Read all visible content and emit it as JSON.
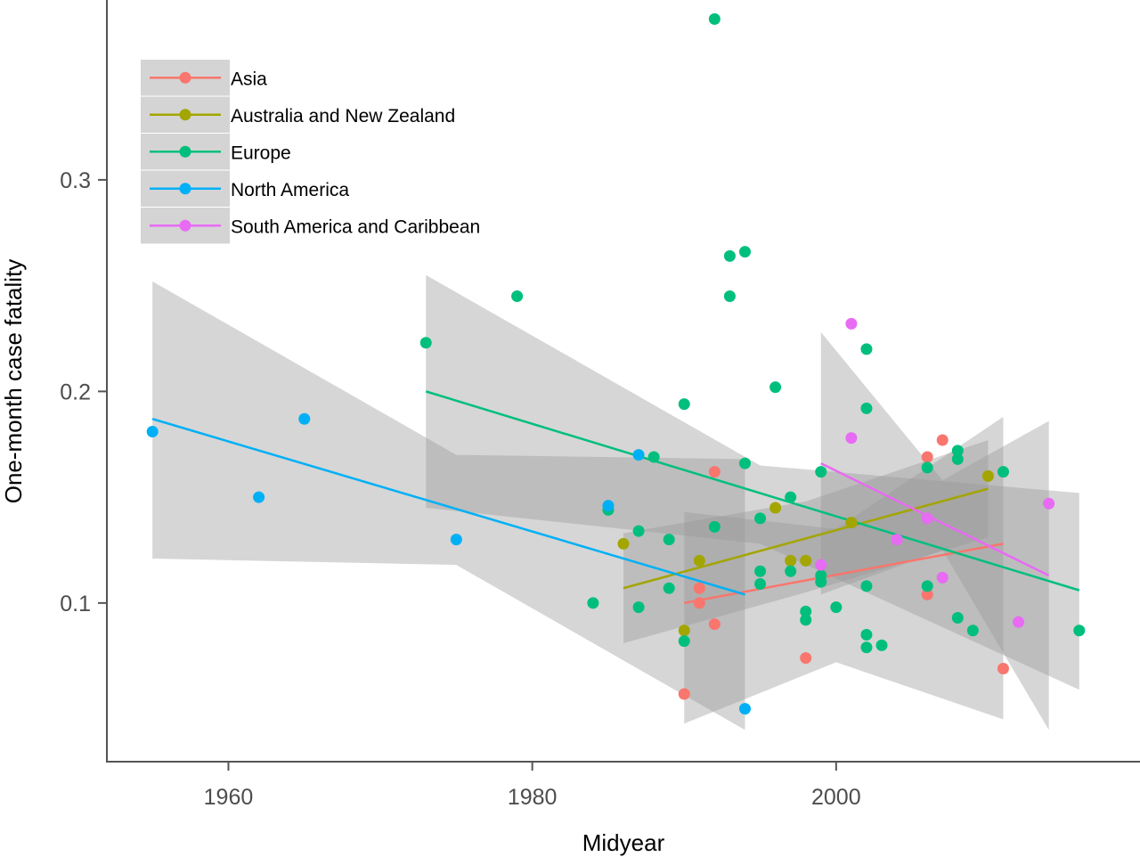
{
  "chart_data": {
    "type": "scatter",
    "title": "",
    "xlabel": "Midyear",
    "ylabel": "One-month case fatality",
    "xlim": [
      1952,
      2020
    ],
    "ylim": [
      0.025,
      0.385
    ],
    "x_ticks": [
      1960,
      1980,
      2000
    ],
    "x_tick_labels": [
      "1960",
      "1980",
      "2000"
    ],
    "y_ticks": [
      0.1,
      0.2,
      0.3
    ],
    "y_tick_labels": [
      "0.1",
      "0.2",
      "0.3"
    ],
    "grid": false,
    "legend_position": "top-left",
    "colors": {
      "Asia": "#F8766D",
      "Australia and New Zealand": "#A3A500",
      "Europe": "#00BF7D",
      "North America": "#00B0F6",
      "South America and Caribbean": "#E76BF3",
      "ribbon": "#999999"
    },
    "series": [
      {
        "name": "Asia",
        "points": [
          [
            1990,
            0.057
          ],
          [
            1991,
            0.1
          ],
          [
            1991,
            0.107
          ],
          [
            1992,
            0.09
          ],
          [
            1992,
            0.162
          ],
          [
            1998,
            0.074
          ],
          [
            2006,
            0.104
          ],
          [
            2006,
            0.169
          ],
          [
            2007,
            0.177
          ],
          [
            2011,
            0.069
          ]
        ],
        "fit": {
          "x": [
            1990,
            2011
          ],
          "y": [
            0.1,
            0.128
          ]
        },
        "ci": {
          "x": [
            1990,
            2000,
            2011
          ],
          "lower": [
            0.043,
            0.072,
            0.045
          ],
          "upper": [
            0.143,
            0.135,
            0.188
          ]
        }
      },
      {
        "name": "Australia and New Zealand",
        "points": [
          [
            1986,
            0.128
          ],
          [
            1990,
            0.087
          ],
          [
            1991,
            0.12
          ],
          [
            1996,
            0.145
          ],
          [
            1997,
            0.12
          ],
          [
            1998,
            0.12
          ],
          [
            2001,
            0.138
          ],
          [
            2010,
            0.16
          ]
        ],
        "fit": {
          "x": [
            1986,
            2010
          ],
          "y": [
            0.107,
            0.154
          ]
        },
        "ci": {
          "x": [
            1986,
            1998,
            2010
          ],
          "lower": [
            0.081,
            0.105,
            0.131
          ],
          "upper": [
            0.133,
            0.148,
            0.177
          ]
        }
      },
      {
        "name": "Europe",
        "points": [
          [
            1973,
            0.223
          ],
          [
            1979,
            0.245
          ],
          [
            1984,
            0.1
          ],
          [
            1985,
            0.144
          ],
          [
            1987,
            0.098
          ],
          [
            1987,
            0.134
          ],
          [
            1988,
            0.169
          ],
          [
            1989,
            0.107
          ],
          [
            1989,
            0.13
          ],
          [
            1990,
            0.082
          ],
          [
            1990,
            0.194
          ],
          [
            1992,
            0.136
          ],
          [
            1992,
            0.376
          ],
          [
            1993,
            0.245
          ],
          [
            1993,
            0.264
          ],
          [
            1994,
            0.266
          ],
          [
            1994,
            0.166
          ],
          [
            1995,
            0.109
          ],
          [
            1995,
            0.115
          ],
          [
            1995,
            0.14
          ],
          [
            1996,
            0.202
          ],
          [
            1997,
            0.115
          ],
          [
            1997,
            0.15
          ],
          [
            1998,
            0.092
          ],
          [
            1998,
            0.096
          ],
          [
            1999,
            0.11
          ],
          [
            1999,
            0.113
          ],
          [
            1999,
            0.162
          ],
          [
            2000,
            0.098
          ],
          [
            2002,
            0.079
          ],
          [
            2002,
            0.085
          ],
          [
            2002,
            0.108
          ],
          [
            2002,
            0.192
          ],
          [
            2002,
            0.22
          ],
          [
            2003,
            0.08
          ],
          [
            2006,
            0.108
          ],
          [
            2006,
            0.164
          ],
          [
            2008,
            0.093
          ],
          [
            2008,
            0.168
          ],
          [
            2008,
            0.172
          ],
          [
            2009,
            0.087
          ],
          [
            2011,
            0.162
          ],
          [
            2016,
            0.087
          ]
        ],
        "fit": {
          "x": [
            1973,
            2016
          ],
          "y": [
            0.2,
            0.106
          ]
        },
        "ci": {
          "x": [
            1973,
            1995,
            2016
          ],
          "lower": [
            0.145,
            0.128,
            0.059
          ],
          "upper": [
            0.255,
            0.165,
            0.152
          ]
        }
      },
      {
        "name": "North America",
        "points": [
          [
            1955,
            0.181
          ],
          [
            1962,
            0.15
          ],
          [
            1965,
            0.187
          ],
          [
            1975,
            0.13
          ],
          [
            1985,
            0.146
          ],
          [
            1987,
            0.17
          ],
          [
            1994,
            0.05
          ]
        ],
        "fit": {
          "x": [
            1955,
            1994
          ],
          "y": [
            0.187,
            0.104
          ]
        },
        "ci": {
          "x": [
            1955,
            1975,
            1994
          ],
          "lower": [
            0.121,
            0.118,
            0.04
          ],
          "upper": [
            0.252,
            0.17,
            0.168
          ]
        }
      },
      {
        "name": "South America and Caribbean",
        "points": [
          [
            1999,
            0.118
          ],
          [
            2001,
            0.178
          ],
          [
            2001,
            0.232
          ],
          [
            2004,
            0.13
          ],
          [
            2006,
            0.14
          ],
          [
            2007,
            0.112
          ],
          [
            2012,
            0.091
          ],
          [
            2014,
            0.147
          ]
        ],
        "fit": {
          "x": [
            1999,
            2014
          ],
          "y": [
            0.166,
            0.113
          ]
        },
        "ci": {
          "x": [
            1999,
            2007,
            2014
          ],
          "lower": [
            0.104,
            0.125,
            0.04
          ],
          "upper": [
            0.228,
            0.158,
            0.186
          ]
        }
      }
    ]
  }
}
